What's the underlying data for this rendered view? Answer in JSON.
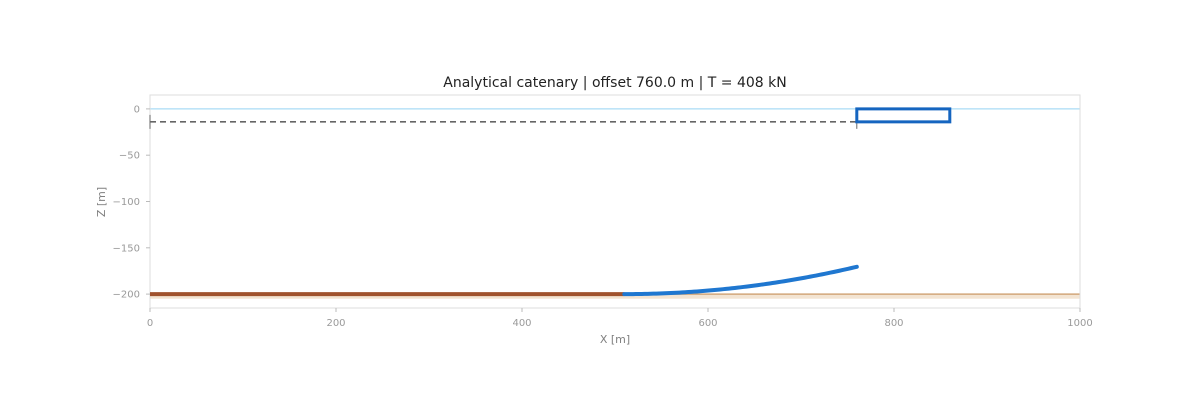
{
  "chart_data": {
    "type": "line",
    "title": "Analytical catenary  |  offset 760.0 m  |  T = 408 kN",
    "xlabel": "X [m]",
    "ylabel": "Z [m]",
    "xlim": [
      0,
      1000
    ],
    "ylim": [
      -215,
      15
    ],
    "xticks": [
      0,
      200,
      400,
      600,
      800,
      1000
    ],
    "xtick_labels": [
      "0",
      "200",
      "400",
      "600",
      "800",
      "1000"
    ],
    "yticks": [
      0,
      -50,
      -100,
      -150,
      -200
    ],
    "ytick_labels": [
      "0",
      "−50",
      "−100",
      "−150",
      "−200"
    ],
    "grid": false,
    "water_depth": -200,
    "sea_surface": 0,
    "seabed_band": [
      -200,
      -205
    ],
    "fairlead": {
      "x": 760,
      "z": -14
    },
    "touchdown_x": 510,
    "anchor": {
      "x": 0,
      "z": -200
    },
    "vessel_box": {
      "x": [
        760,
        860
      ],
      "z": [
        0,
        -14
      ]
    },
    "reference_line": {
      "x": [
        0,
        760
      ],
      "z": -14
    },
    "series": [
      {
        "name": "",
        "kind": "seabed_line",
        "x": [
          0,
          510
        ],
        "y": [
          -200,
          -200
        ]
      },
      {
        "name": "",
        "kind": "suspended_line",
        "catenary_a": 1063.6,
        "x_range": [
          510,
          760
        ]
      }
    ],
    "colors": {
      "seabed_line": "#a0522d",
      "suspended_line": "#1f77d0",
      "vessel": "#1565c0",
      "surface": "#aadcf5",
      "seabed": "#d2a77a",
      "seabed_fill": "#f3e4d2",
      "reference": "#666666",
      "frame": "#dddddd"
    }
  }
}
